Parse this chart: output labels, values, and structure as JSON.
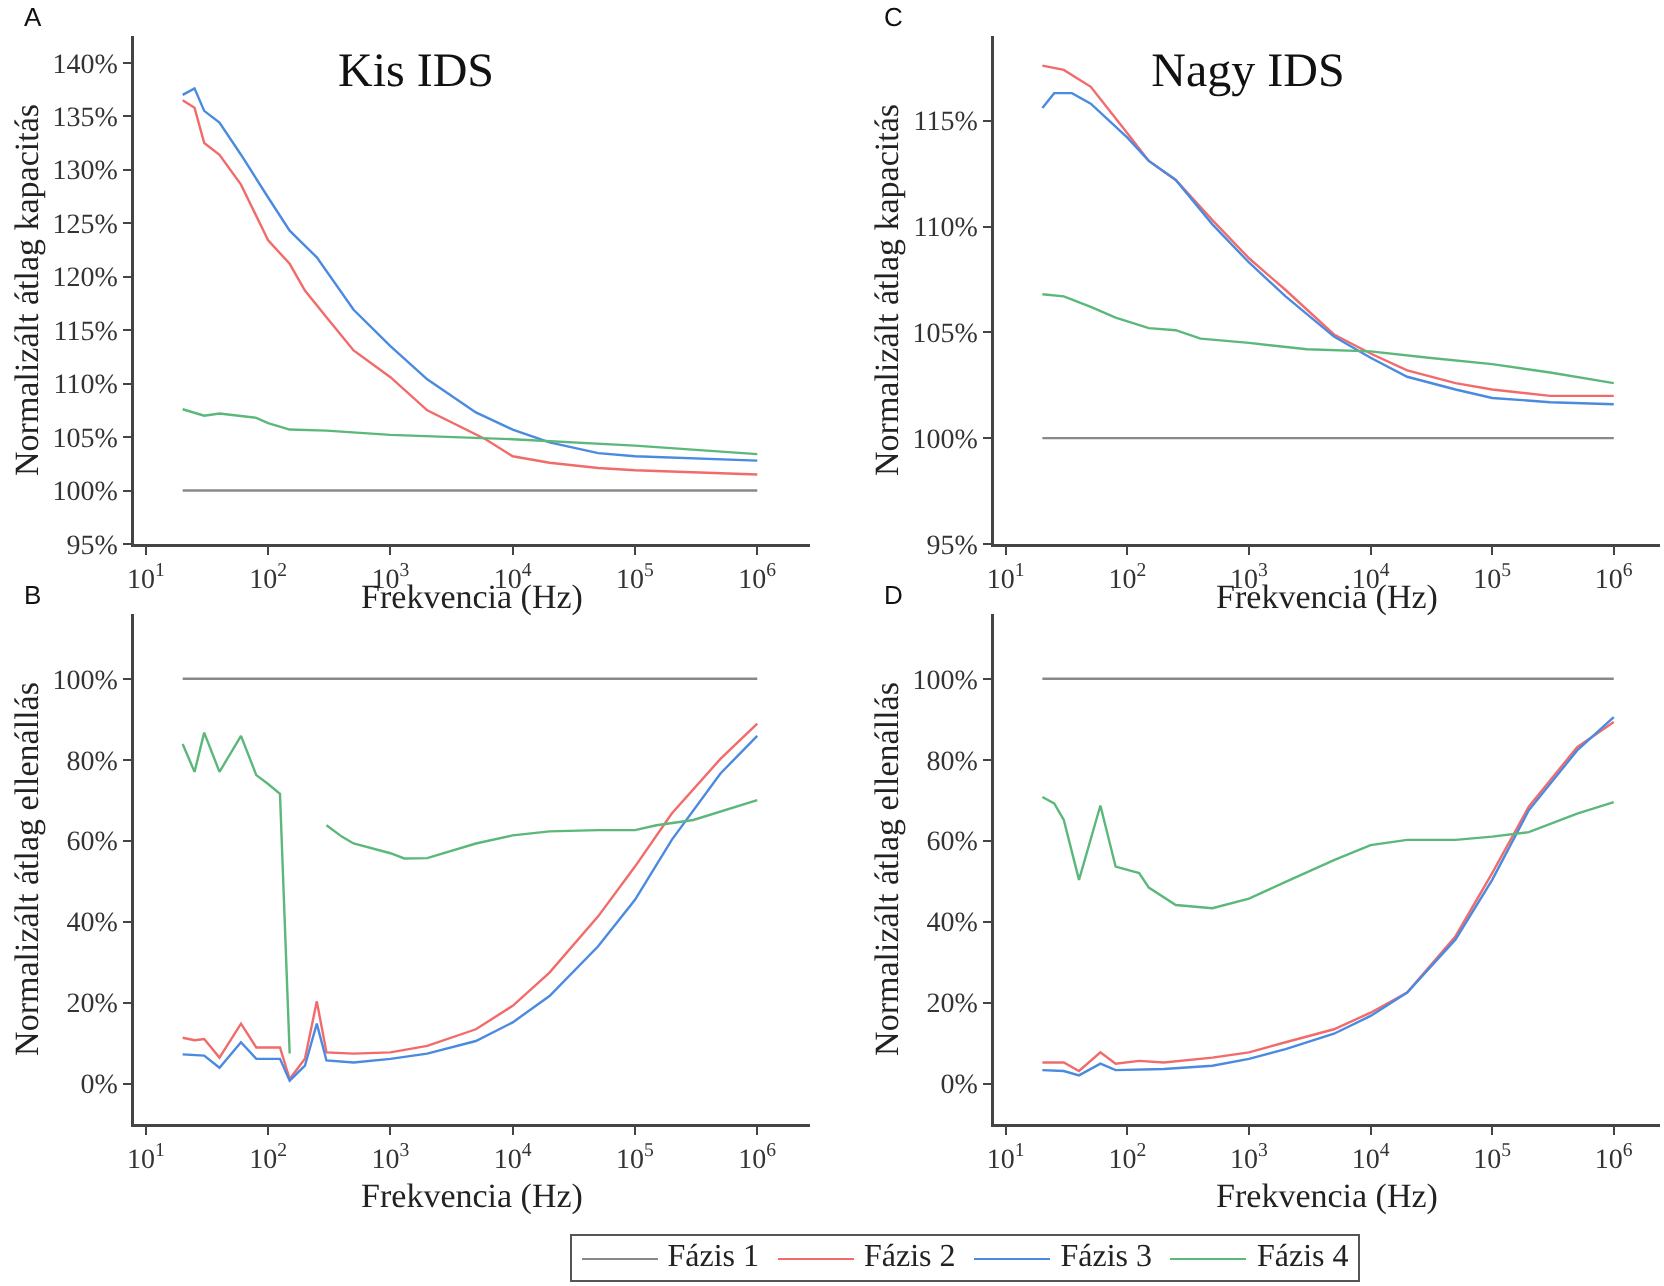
{
  "chart_data": [
    {
      "type": "line",
      "title": "Kis IDS",
      "annotations": [
        "A"
      ],
      "xlabel": "Frekvencia (Hz)",
      "ylabel": "Normalizált átlag kapacitás",
      "log": "x",
      "legend": "bottom",
      "xlim": [
        8,
        2700000
      ],
      "xticks": [
        {
          "value": 10,
          "label": "10$^{1}$"
        },
        {
          "value": 100,
          "label": "10$^{2}$"
        },
        {
          "value": 1000,
          "label": "10$^{3}$"
        },
        {
          "value": 10000,
          "label": "10$^{4}$"
        },
        {
          "value": 100000,
          "label": "10$^{5}$"
        },
        {
          "value": 1000000,
          "label": "10$^{6}$"
        }
      ],
      "ylim": [
        95,
        142.5
      ],
      "yticks": [
        {
          "value": 95,
          "label": "95%"
        },
        {
          "value": 100,
          "label": "100%"
        },
        {
          "value": 105,
          "label": "105%"
        },
        {
          "value": 110,
          "label": "110%"
        },
        {
          "value": 115,
          "label": "115%"
        },
        {
          "value": 120,
          "label": "120%"
        },
        {
          "value": 125,
          "label": "125%"
        },
        {
          "value": 130,
          "label": "130%"
        },
        {
          "value": 135,
          "label": "135%"
        },
        {
          "value": 140,
          "label": "140%"
        }
      ],
      "series": [
        {
          "name": "Fázis 1",
          "color": "#888888",
          "x": [
            20,
            1000000
          ],
          "values": [
            100,
            100
          ]
        },
        {
          "name": "Fázis 2",
          "color": "#f26b6b",
          "x": [
            20,
            25,
            30,
            40,
            60,
            100,
            150,
            200,
            300,
            500,
            1000,
            2000,
            6000,
            10000,
            20000,
            50000,
            100000,
            1000000
          ],
          "values": [
            136.5,
            135.8,
            132.5,
            131.4,
            128.6,
            123.4,
            121.2,
            118.7,
            116.2,
            113.1,
            110.6,
            107.5,
            104.8,
            103.2,
            102.6,
            102.1,
            101.9,
            101.5
          ]
        },
        {
          "name": "Fázis 3",
          "color": "#4a8ae0",
          "x": [
            20,
            25,
            30,
            40,
            60,
            100,
            150,
            250,
            500,
            1000,
            2000,
            5000,
            10000,
            20000,
            50000,
            100000,
            1000000
          ],
          "values": [
            137.0,
            137.6,
            135.5,
            134.4,
            131.4,
            127.4,
            124.3,
            121.8,
            116.9,
            113.5,
            110.4,
            107.3,
            105.7,
            104.5,
            103.5,
            103.2,
            102.8
          ]
        },
        {
          "name": "Fázis 4",
          "color": "#5cb87a",
          "x": [
            20,
            30,
            40,
            80,
            100,
            150,
            300,
            1000,
            10000,
            100000,
            1000000
          ],
          "values": [
            107.6,
            107.0,
            107.2,
            106.8,
            106.3,
            105.7,
            105.6,
            105.2,
            104.8,
            104.2,
            103.4
          ]
        }
      ]
    },
    {
      "type": "line",
      "annotations": [
        "B"
      ],
      "xlabel": "Frekvencia (Hz)",
      "ylabel": "Normalizált átlag ellenállás",
      "log": "x",
      "legend": "bottom",
      "xlim": [
        8,
        2700000
      ],
      "xticks": [
        {
          "value": 10,
          "label": "10$^{1}$"
        },
        {
          "value": 100,
          "label": "10$^{2}$"
        },
        {
          "value": 1000,
          "label": "10$^{3}$"
        },
        {
          "value": 10000,
          "label": "10$^{4}$"
        },
        {
          "value": 100000,
          "label": "10$^{5}$"
        },
        {
          "value": 1000000,
          "label": "10$^{6}$"
        }
      ],
      "ylim": [
        -10,
        116
      ],
      "yticks": [
        {
          "value": 0,
          "label": "0%"
        },
        {
          "value": 20,
          "label": "20%"
        },
        {
          "value": 40,
          "label": "40%"
        },
        {
          "value": 60,
          "label": "60%"
        },
        {
          "value": 80,
          "label": "80%"
        },
        {
          "value": 100,
          "label": "100%"
        }
      ],
      "series": [
        {
          "name": "Fázis 1",
          "color": "#888888",
          "x": [
            20,
            1000000
          ],
          "values": [
            100,
            100
          ]
        },
        {
          "name": "Fázis 2",
          "color": "#f26b6b",
          "x": [
            20,
            25,
            30,
            40,
            60,
            80,
            125,
            150,
            200,
            250,
            300,
            500,
            1000,
            2000,
            5000,
            10000,
            20000,
            50000,
            100000,
            200000,
            500000,
            1000000
          ],
          "values": [
            11.3,
            10.7,
            11,
            6.4,
            14.8,
            8.9,
            8.9,
            1.1,
            6.1,
            20.3,
            7.7,
            7.4,
            7.7,
            9.3,
            13.4,
            19.2,
            27.4,
            41.3,
            53.6,
            66.7,
            80.2,
            88.9
          ]
        },
        {
          "name": "Fázis 3",
          "color": "#4a8ae0",
          "x": [
            20,
            30,
            40,
            60,
            80,
            125,
            150,
            200,
            250,
            300,
            500,
            1000,
            2000,
            5000,
            10000,
            20000,
            50000,
            100000,
            200000,
            500000,
            1000000
          ],
          "values": [
            7.2,
            6.9,
            3.9,
            10.2,
            6.1,
            6.1,
            0.7,
            4.4,
            14.8,
            5.7,
            5.2,
            6.1,
            7.4,
            10.5,
            15.1,
            21.6,
            33.9,
            45.4,
            60.2,
            76.6,
            85.9
          ]
        },
        {
          "name": "Fázis 4",
          "color": "#5cb87a",
          "x": [
            20,
            25,
            30,
            40,
            60,
            80,
            100,
            125,
            150,
            229,
            283,
            300,
            400,
            500,
            1000,
            1300,
            2000,
            5000,
            10000,
            20000,
            50000,
            100000,
            150000,
            300000,
            1000000
          ],
          "values": [
            83.9,
            77,
            86.7,
            77,
            85.9,
            76.2,
            74,
            71.6,
            7.4,
            null,
            null,
            63.8,
            61,
            59.3,
            56.9,
            55.6,
            55.7,
            59.3,
            61.3,
            62.3,
            62.6,
            62.6,
            63.8,
            65.1,
            70
          ]
        }
      ]
    },
    {
      "type": "line",
      "title": "Nagy IDS",
      "annotations": [
        "C"
      ],
      "xlabel": "Frekvencia (Hz)",
      "ylabel": "Normalizált átlag kapacitás",
      "log": "x",
      "legend": "bottom",
      "xlim": [
        8,
        2400000
      ],
      "xticks": [
        {
          "value": 10,
          "label": "10$^{1}$"
        },
        {
          "value": 100,
          "label": "10$^{2}$"
        },
        {
          "value": 1000,
          "label": "10$^{3}$"
        },
        {
          "value": 10000,
          "label": "10$^{4}$"
        },
        {
          "value": 100000,
          "label": "10$^{5}$"
        },
        {
          "value": 1000000,
          "label": "10$^{6}$"
        }
      ],
      "ylim": [
        95,
        119
      ],
      "yticks": [
        {
          "value": 95,
          "label": "95%"
        },
        {
          "value": 100,
          "label": "100%"
        },
        {
          "value": 105,
          "label": "105%"
        },
        {
          "value": 110,
          "label": "110%"
        },
        {
          "value": 115,
          "label": "115%"
        }
      ],
      "series": [
        {
          "name": "Fázis 1",
          "color": "#888888",
          "x": [
            20,
            1000000
          ],
          "values": [
            100,
            100
          ]
        },
        {
          "name": "Fázis 2",
          "color": "#f26b6b",
          "x": [
            20,
            30,
            50,
            100,
            150,
            250,
            500,
            1000,
            2000,
            5000,
            10000,
            20000,
            50000,
            100000,
            300000,
            1000000
          ],
          "values": [
            117.6,
            117.4,
            116.6,
            114.4,
            113.1,
            112.2,
            110.3,
            108.5,
            107.0,
            104.9,
            104.0,
            103.2,
            102.6,
            102.3,
            102.0,
            102.0
          ]
        },
        {
          "name": "Fázis 3",
          "color": "#4a8ae0",
          "x": [
            20,
            25,
            35,
            50,
            100,
            150,
            250,
            500,
            1000,
            2000,
            5000,
            10000,
            20000,
            50000,
            100000,
            300000,
            1000000
          ],
          "values": [
            115.6,
            116.3,
            116.3,
            115.8,
            114.2,
            113.1,
            112.2,
            110.1,
            108.3,
            106.7,
            104.8,
            103.8,
            102.9,
            102.3,
            101.9,
            101.7,
            101.6
          ]
        },
        {
          "name": "Fázis 4",
          "color": "#5cb87a",
          "x": [
            20,
            30,
            50,
            80,
            150,
            250,
            400,
            1000,
            3000,
            10000,
            30000,
            100000,
            300000,
            1000000
          ],
          "values": [
            106.8,
            106.7,
            106.2,
            105.7,
            105.2,
            105.1,
            104.7,
            104.5,
            104.2,
            104.1,
            103.8,
            103.5,
            103.1,
            102.6
          ]
        }
      ]
    },
    {
      "type": "line",
      "annotations": [
        "D"
      ],
      "xlabel": "Frekvencia (Hz)",
      "ylabel": "Normalizált átlag ellenállás",
      "log": "x",
      "legend": "bottom",
      "xlim": [
        8,
        2400000
      ],
      "xticks": [
        {
          "value": 10,
          "label": "10$^{1}$"
        },
        {
          "value": 100,
          "label": "10$^{2}$"
        },
        {
          "value": 1000,
          "label": "10$^{3}$"
        },
        {
          "value": 10000,
          "label": "10$^{4}$"
        },
        {
          "value": 100000,
          "label": "10$^{5}$"
        },
        {
          "value": 1000000,
          "label": "10$^{6}$"
        }
      ],
      "ylim": [
        -10,
        116
      ],
      "yticks": [
        {
          "value": 0,
          "label": "0%"
        },
        {
          "value": 20,
          "label": "20%"
        },
        {
          "value": 40,
          "label": "40%"
        },
        {
          "value": 60,
          "label": "60%"
        },
        {
          "value": 80,
          "label": "80%"
        },
        {
          "value": 100,
          "label": "100%"
        }
      ],
      "series": [
        {
          "name": "Fázis 1",
          "color": "#888888",
          "x": [
            20,
            1000000
          ],
          "values": [
            100,
            100
          ]
        },
        {
          "name": "Fázis 2",
          "color": "#f26b6b",
          "x": [
            20,
            30,
            40,
            60,
            80,
            125,
            200,
            500,
            1000,
            2000,
            5000,
            10000,
            20000,
            50000,
            100000,
            200000,
            500000,
            1000000
          ],
          "values": [
            5.2,
            5.2,
            3.1,
            7.7,
            4.9,
            5.6,
            5.2,
            6.4,
            7.7,
            10.2,
            13.4,
            17.5,
            22.5,
            36.4,
            52,
            68.4,
            83.1,
            89.3
          ]
        },
        {
          "name": "Fázis 3",
          "color": "#4a8ae0",
          "x": [
            20,
            30,
            40,
            60,
            80,
            200,
            500,
            1000,
            2000,
            5000,
            10000,
            20000,
            50000,
            100000,
            200000,
            500000,
            1000000
          ],
          "values": [
            3.3,
            3.1,
            2,
            4.9,
            3.3,
            3.6,
            4.4,
            6.1,
            8.5,
            12.3,
            16.7,
            22.5,
            35.6,
            50.3,
            67.5,
            82.3,
            90.5
          ]
        },
        {
          "name": "Fázis 4",
          "color": "#5cb87a",
          "x": [
            20,
            25,
            30,
            40,
            60,
            80,
            125,
            150,
            250,
            500,
            1000,
            2000,
            5000,
            10000,
            20000,
            50000,
            100000,
            200000,
            500000,
            1000000
          ],
          "values": [
            70.8,
            69.2,
            65.1,
            50.3,
            68.7,
            53.6,
            52,
            48.4,
            44.1,
            43.3,
            45.7,
            49.8,
            55.2,
            58.9,
            60.2,
            60.2,
            61,
            62.1,
            66.7,
            69.5
          ]
        }
      ]
    }
  ]
}
